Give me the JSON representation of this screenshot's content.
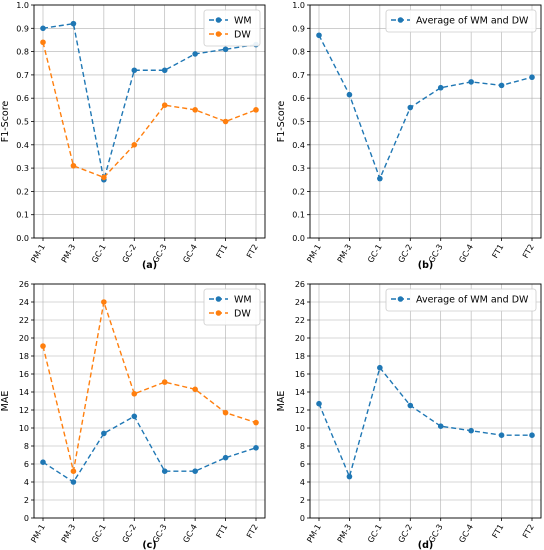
{
  "colors": {
    "wm": "#1f77b4",
    "dw": "#ff7f0e",
    "grid": "#b0b0b0",
    "frame": "#000000"
  },
  "chart_data": [
    {
      "type": "line",
      "caption": "(a)",
      "ylabel": "F1-Score",
      "categories": [
        "PM-1",
        "PM-3",
        "GC-1",
        "GC-2",
        "GC-3",
        "GC-4",
        "FT1",
        "FT2"
      ],
      "ylim": [
        0,
        1.0
      ],
      "yticks": [
        "0.0",
        "0.1",
        "0.2",
        "0.3",
        "0.4",
        "0.5",
        "0.6",
        "0.7",
        "0.8",
        "0.9",
        "1.0"
      ],
      "grid": true,
      "legend": "top-right",
      "series": [
        {
          "name": "WM",
          "color": "#1f77b4",
          "values": [
            0.9,
            0.92,
            0.25,
            0.72,
            0.72,
            0.79,
            0.81,
            0.83
          ]
        },
        {
          "name": "DW",
          "color": "#ff7f0e",
          "values": [
            0.84,
            0.31,
            0.26,
            0.4,
            0.57,
            0.55,
            0.5,
            0.55
          ]
        }
      ]
    },
    {
      "type": "line",
      "caption": "(b)",
      "ylabel": "F1-Score",
      "categories": [
        "PM-1",
        "PM-3",
        "GC-1",
        "GC-2",
        "GC-3",
        "GC-4",
        "FT1",
        "FT2"
      ],
      "ylim": [
        0,
        1.0
      ],
      "yticks": [
        "0.0",
        "0.1",
        "0.2",
        "0.3",
        "0.4",
        "0.5",
        "0.6",
        "0.7",
        "0.8",
        "0.9",
        "1.0"
      ],
      "grid": true,
      "legend": "top-right",
      "series": [
        {
          "name": "Average of WM and DW",
          "color": "#1f77b4",
          "values": [
            0.87,
            0.615,
            0.255,
            0.56,
            0.645,
            0.67,
            0.655,
            0.69
          ]
        }
      ]
    },
    {
      "type": "line",
      "caption": "(c)",
      "ylabel": "MAE",
      "categories": [
        "PM-1",
        "PM-3",
        "GC-1",
        "GC-2",
        "GC-3",
        "GC-4",
        "FT1",
        "FT2"
      ],
      "ylim": [
        0,
        26
      ],
      "yticks": [
        "0",
        "2",
        "4",
        "6",
        "8",
        "10",
        "12",
        "14",
        "16",
        "18",
        "20",
        "22",
        "24",
        "26"
      ],
      "grid": true,
      "legend": "top-right",
      "series": [
        {
          "name": "WM",
          "color": "#1f77b4",
          "values": [
            6.2,
            4.0,
            9.4,
            11.3,
            5.2,
            5.2,
            6.7,
            7.8
          ]
        },
        {
          "name": "DW",
          "color": "#ff7f0e",
          "values": [
            19.1,
            5.2,
            24.0,
            13.8,
            15.1,
            14.3,
            11.7,
            10.6
          ]
        }
      ]
    },
    {
      "type": "line",
      "caption": "(d)",
      "ylabel": "MAE",
      "categories": [
        "PM-1",
        "PM-3",
        "GC-1",
        "GC-2",
        "GC-3",
        "GC-4",
        "FT1",
        "FT2"
      ],
      "ylim": [
        0,
        26
      ],
      "yticks": [
        "0",
        "2",
        "4",
        "6",
        "8",
        "10",
        "12",
        "14",
        "16",
        "18",
        "20",
        "22",
        "24",
        "26"
      ],
      "grid": true,
      "legend": "top-right",
      "series": [
        {
          "name": "Average of WM and DW",
          "color": "#1f77b4",
          "values": [
            12.7,
            4.6,
            16.7,
            12.5,
            10.2,
            9.7,
            9.2,
            9.2
          ]
        }
      ]
    }
  ]
}
